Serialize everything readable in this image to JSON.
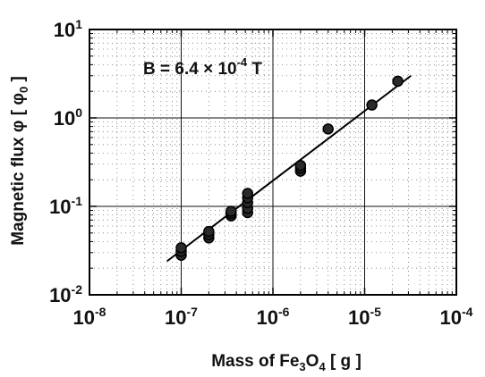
{
  "chart_data": {
    "type": "scatter",
    "xscale": "log",
    "yscale": "log",
    "xlim": [
      1e-08,
      0.0001
    ],
    "ylim": [
      0.01,
      10
    ],
    "grid": true,
    "x_ticks": [
      {
        "base": "10",
        "exp": "-8"
      },
      {
        "base": "10",
        "exp": "-7"
      },
      {
        "base": "10",
        "exp": "-6"
      },
      {
        "base": "10",
        "exp": "-5"
      },
      {
        "base": "10",
        "exp": "-4"
      }
    ],
    "y_ticks": [
      {
        "label": "10",
        "exp": "-2"
      },
      {
        "label": "10",
        "exp": "-1"
      },
      {
        "label": "1",
        "exp": ""
      },
      {
        "label": "10",
        "exp": "1"
      }
    ],
    "y_tick_labels": [
      "10-2",
      "10-1",
      "10",
      "101"
    ],
    "y_tick_parts": [
      {
        "main": "10",
        "sup": "-2"
      },
      {
        "main": "10",
        "sup": "-1"
      },
      {
        "main": "10",
        "sup": "0"
      },
      {
        "main": "10",
        "sup": "1"
      }
    ],
    "xlabel_parts": {
      "pre": "Mass of Fe",
      "sub1": "3",
      "mid": "O",
      "sub2": "4",
      "post": " [ g ]"
    },
    "ylabel_parts": {
      "pre": "Magnetic flux φ [ φ",
      "sub": "0",
      "post": " ]"
    },
    "annotation_parts": {
      "pre": "B = 6.4 × 10",
      "sup": "-4",
      "post": " T"
    },
    "points": [
      {
        "x": 1e-07,
        "y": 0.028
      },
      {
        "x": 1e-07,
        "y": 0.031
      },
      {
        "x": 1e-07,
        "y": 0.034
      },
      {
        "x": 2e-07,
        "y": 0.044
      },
      {
        "x": 2e-07,
        "y": 0.048
      },
      {
        "x": 2e-07,
        "y": 0.052
      },
      {
        "x": 3.5e-07,
        "y": 0.078
      },
      {
        "x": 3.5e-07,
        "y": 0.083
      },
      {
        "x": 3.5e-07,
        "y": 0.088
      },
      {
        "x": 5.3e-07,
        "y": 0.085
      },
      {
        "x": 5.3e-07,
        "y": 0.095
      },
      {
        "x": 5.3e-07,
        "y": 0.11
      },
      {
        "x": 5.3e-07,
        "y": 0.125
      },
      {
        "x": 5.3e-07,
        "y": 0.14
      },
      {
        "x": 2e-06,
        "y": 0.25
      },
      {
        "x": 2e-06,
        "y": 0.27
      },
      {
        "x": 2e-06,
        "y": 0.29
      },
      {
        "x": 4e-06,
        "y": 0.75
      },
      {
        "x": 1.2e-05,
        "y": 1.4
      },
      {
        "x": 2.3e-05,
        "y": 2.6
      }
    ],
    "fit_line": [
      {
        "x": 7e-08,
        "y": 0.024
      },
      {
        "x": 3.2e-05,
        "y": 3.0
      }
    ]
  }
}
